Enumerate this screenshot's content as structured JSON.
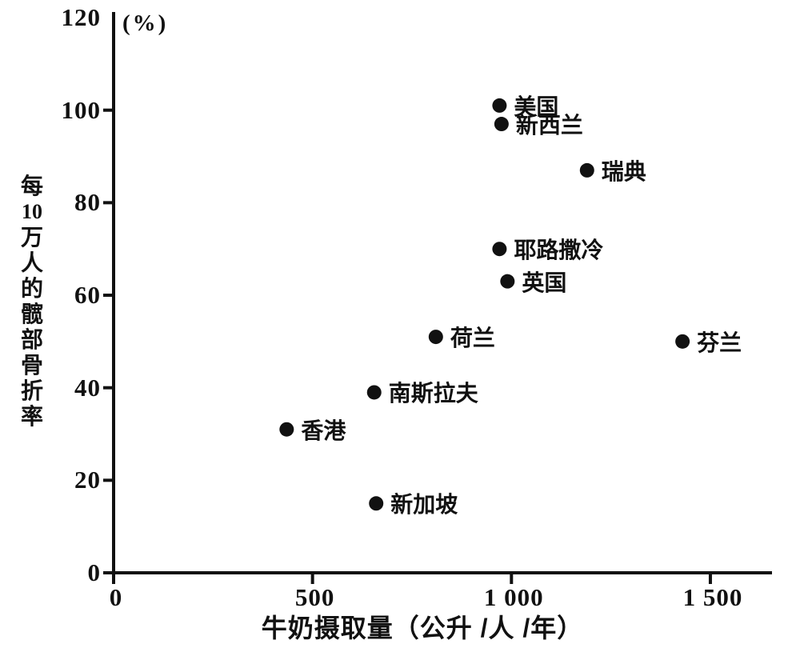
{
  "chart_data": {
    "type": "scatter",
    "title": "",
    "xlabel": "牛奶摄取量（公升 /人 /年）",
    "ylabel": "每10万人的髋部骨折率",
    "ylabel_chars": [
      "每",
      "10",
      "万",
      "人",
      "的",
      "髋",
      "部",
      "骨",
      "折",
      "率"
    ],
    "ylabel_unit": "(%)",
    "xlim": [
      0,
      1650
    ],
    "ylim": [
      0,
      121
    ],
    "grid": false,
    "legend": "none",
    "marker_color": "#111111",
    "axis_color": "#111111",
    "background": "#ffffff",
    "x_ticks": [
      {
        "value": 0,
        "label": "0",
        "mark": true
      },
      {
        "value": 500,
        "label": "500",
        "mark": true
      },
      {
        "value": 1000,
        "label": "1 000",
        "mark": true
      },
      {
        "value": 1500,
        "label": "1 500",
        "mark": true
      }
    ],
    "y_ticks": [
      {
        "value": 0,
        "label": "0",
        "mark": true
      },
      {
        "value": 20,
        "label": "20",
        "mark": true
      },
      {
        "value": 40,
        "label": "40",
        "mark": true
      },
      {
        "value": 60,
        "label": "60",
        "mark": true
      },
      {
        "value": 80,
        "label": "80",
        "mark": true
      },
      {
        "value": 100,
        "label": "100",
        "mark": true
      },
      {
        "value": 120,
        "label": "120",
        "mark": false
      }
    ],
    "points": [
      {
        "label": "美国",
        "x": 970,
        "y": 101
      },
      {
        "label": "新西兰",
        "x": 975,
        "y": 97
      },
      {
        "label": "瑞典",
        "x": 1190,
        "y": 87
      },
      {
        "label": "耶路撒冷",
        "x": 970,
        "y": 70
      },
      {
        "label": "英国",
        "x": 990,
        "y": 63
      },
      {
        "label": "荷兰",
        "x": 810,
        "y": 51
      },
      {
        "label": "芬兰",
        "x": 1430,
        "y": 50
      },
      {
        "label": "南斯拉夫",
        "x": 655,
        "y": 39
      },
      {
        "label": "香港",
        "x": 435,
        "y": 31
      },
      {
        "label": "新加坡",
        "x": 660,
        "y": 15
      }
    ]
  }
}
